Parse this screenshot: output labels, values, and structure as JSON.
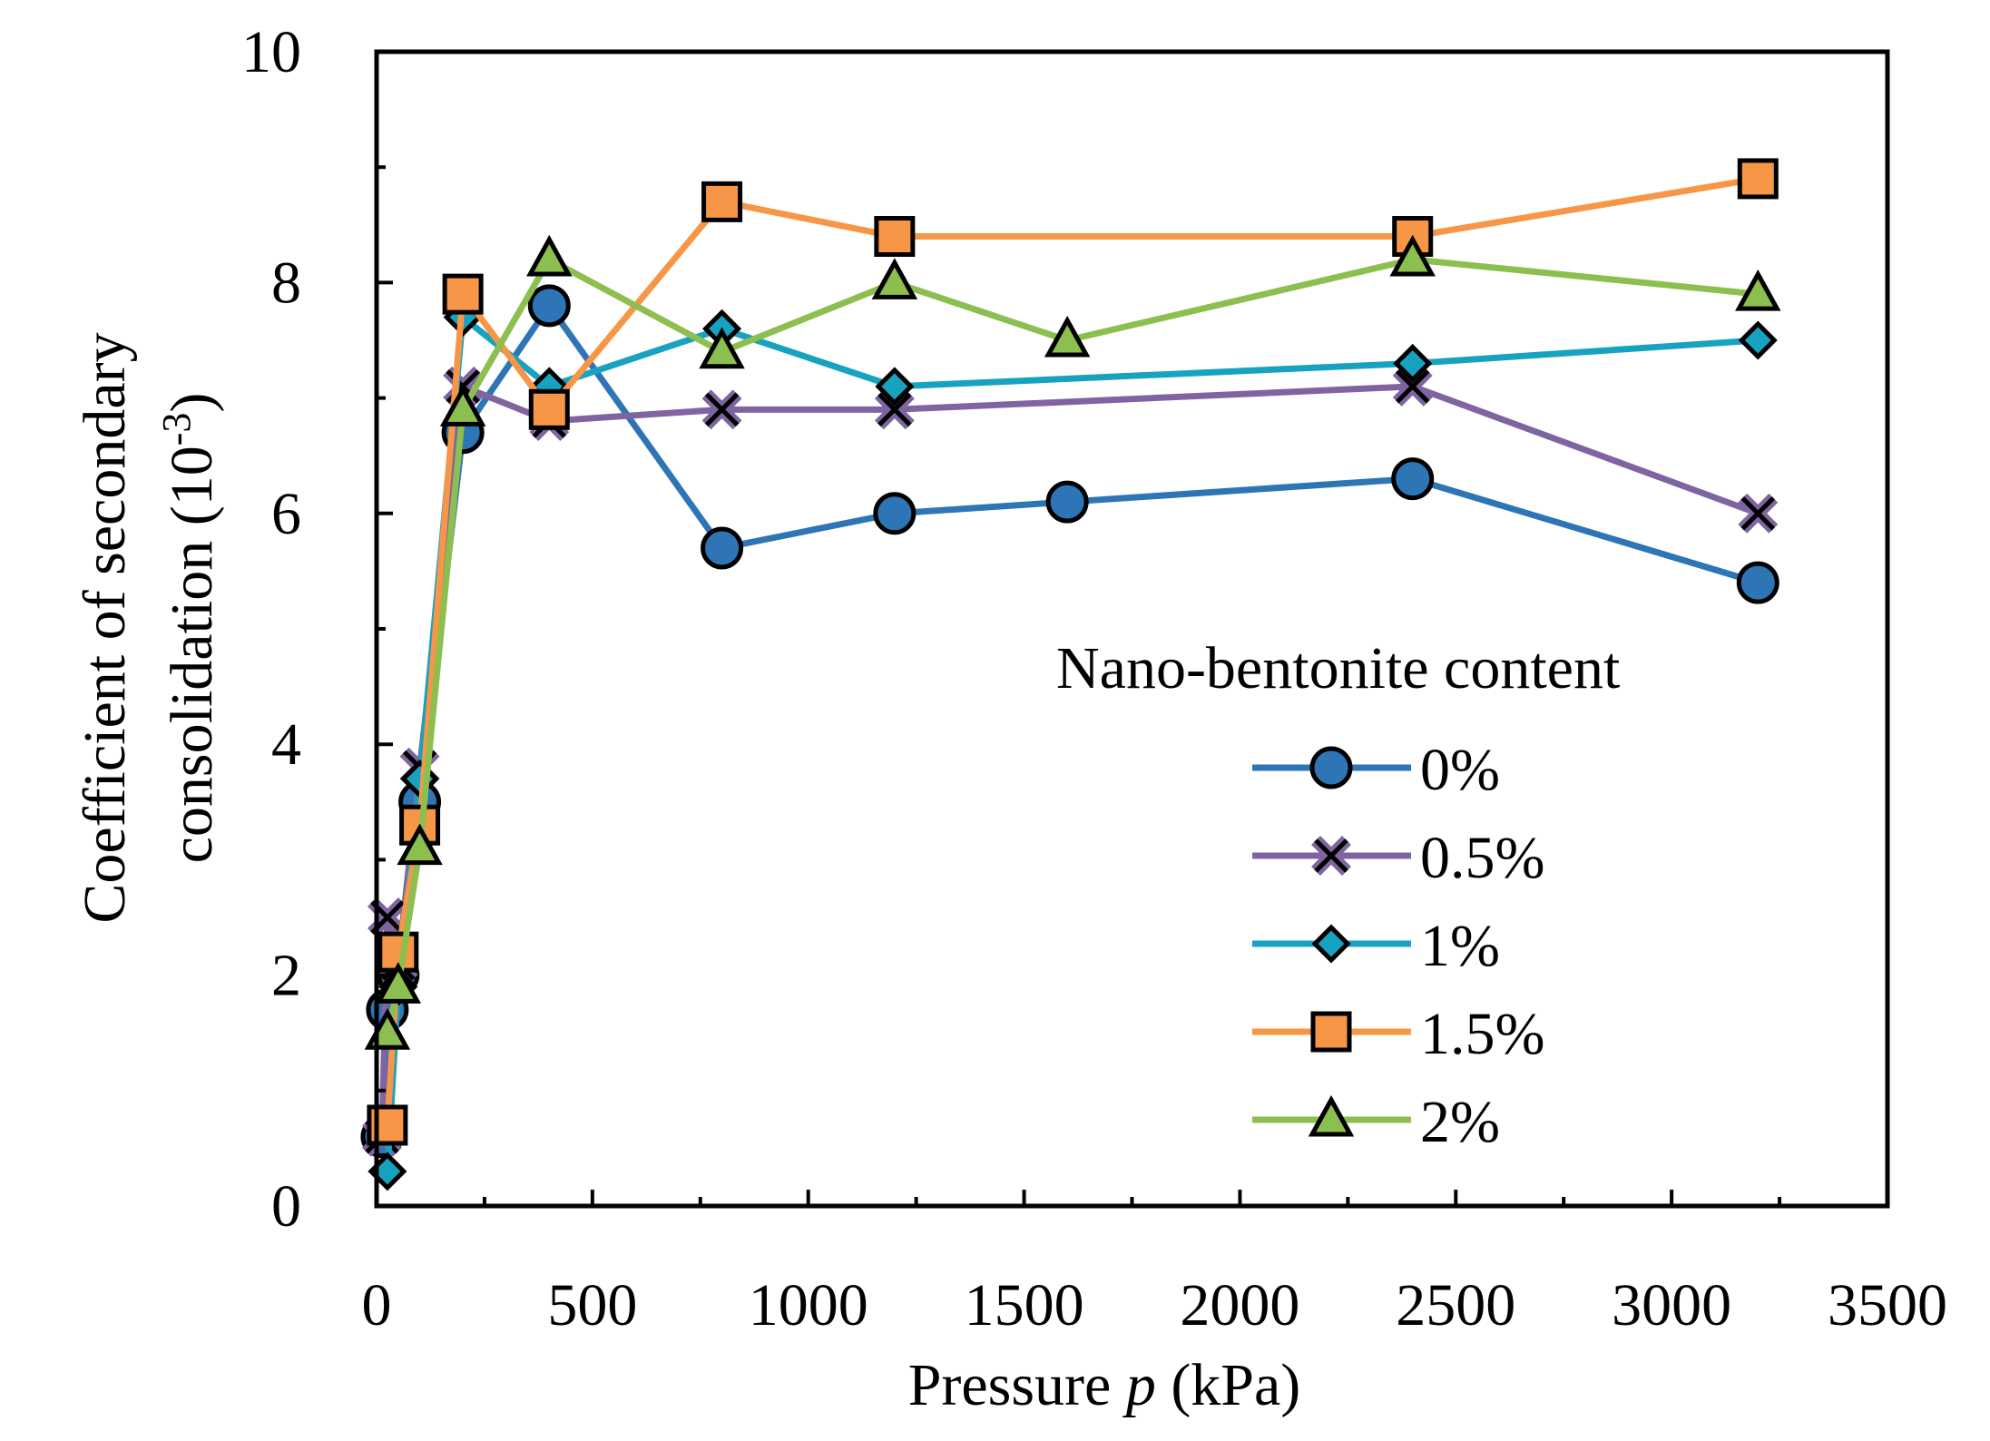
{
  "chart_data": {
    "type": "line",
    "title": "",
    "xlabel_prefix": "Pressure ",
    "xlabel_var": "p",
    "xlabel_suffix": " (kPa)",
    "ylabel_line1": "Coefficient of secondary",
    "ylabel_line2_main": "consolidation (10",
    "ylabel_line2_sup": "-3",
    "ylabel_line2_end": ")",
    "xlim": [
      0,
      3500
    ],
    "ylim": [
      0,
      10
    ],
    "x_ticks": [
      0,
      500,
      1000,
      1500,
      2000,
      2500,
      3000,
      3500
    ],
    "y_ticks": [
      0,
      2,
      4,
      6,
      8,
      10
    ],
    "grid": false,
    "legend_title": "Nano-bentonite content",
    "legend_position": "right",
    "series": [
      {
        "name": "0%",
        "color": "#2E75B6",
        "marker": "circle",
        "x": [
          12.5,
          25,
          50,
          100,
          200,
          400,
          800,
          1200,
          1600,
          2400,
          3200
        ],
        "y": [
          0.6,
          1.7,
          2.0,
          3.5,
          6.7,
          7.8,
          5.7,
          6.0,
          6.1,
          6.3,
          5.4
        ]
      },
      {
        "name": "0.5%",
        "color": "#8064A2",
        "marker": "x",
        "x": [
          12.5,
          25,
          50,
          100,
          200,
          400,
          800,
          1200,
          2400,
          3200
        ],
        "y": [
          0.6,
          2.5,
          2.1,
          3.8,
          7.1,
          6.8,
          6.9,
          6.9,
          7.1,
          6.0
        ]
      },
      {
        "name": "1%",
        "color": "#17A2C0",
        "marker": "diamond",
        "x": [
          25,
          50,
          100,
          200,
          400,
          800,
          1200,
          2400,
          3200
        ],
        "y": [
          0.3,
          1.9,
          3.7,
          7.7,
          7.1,
          7.6,
          7.1,
          7.3,
          7.5
        ]
      },
      {
        "name": "1.5%",
        "color": "#F79646",
        "marker": "square",
        "x": [
          25,
          50,
          100,
          200,
          400,
          800,
          1200,
          2400,
          3200
        ],
        "y": [
          0.7,
          2.2,
          3.3,
          7.9,
          6.9,
          8.7,
          8.4,
          8.4,
          8.9
        ]
      },
      {
        "name": "2%",
        "color": "#8CBF4F",
        "marker": "triangle",
        "x": [
          25,
          50,
          100,
          200,
          400,
          800,
          1200,
          1600,
          2400,
          3200
        ],
        "y": [
          1.5,
          1.9,
          3.1,
          6.9,
          8.2,
          7.4,
          8.0,
          7.5,
          8.2,
          7.9
        ]
      }
    ]
  }
}
